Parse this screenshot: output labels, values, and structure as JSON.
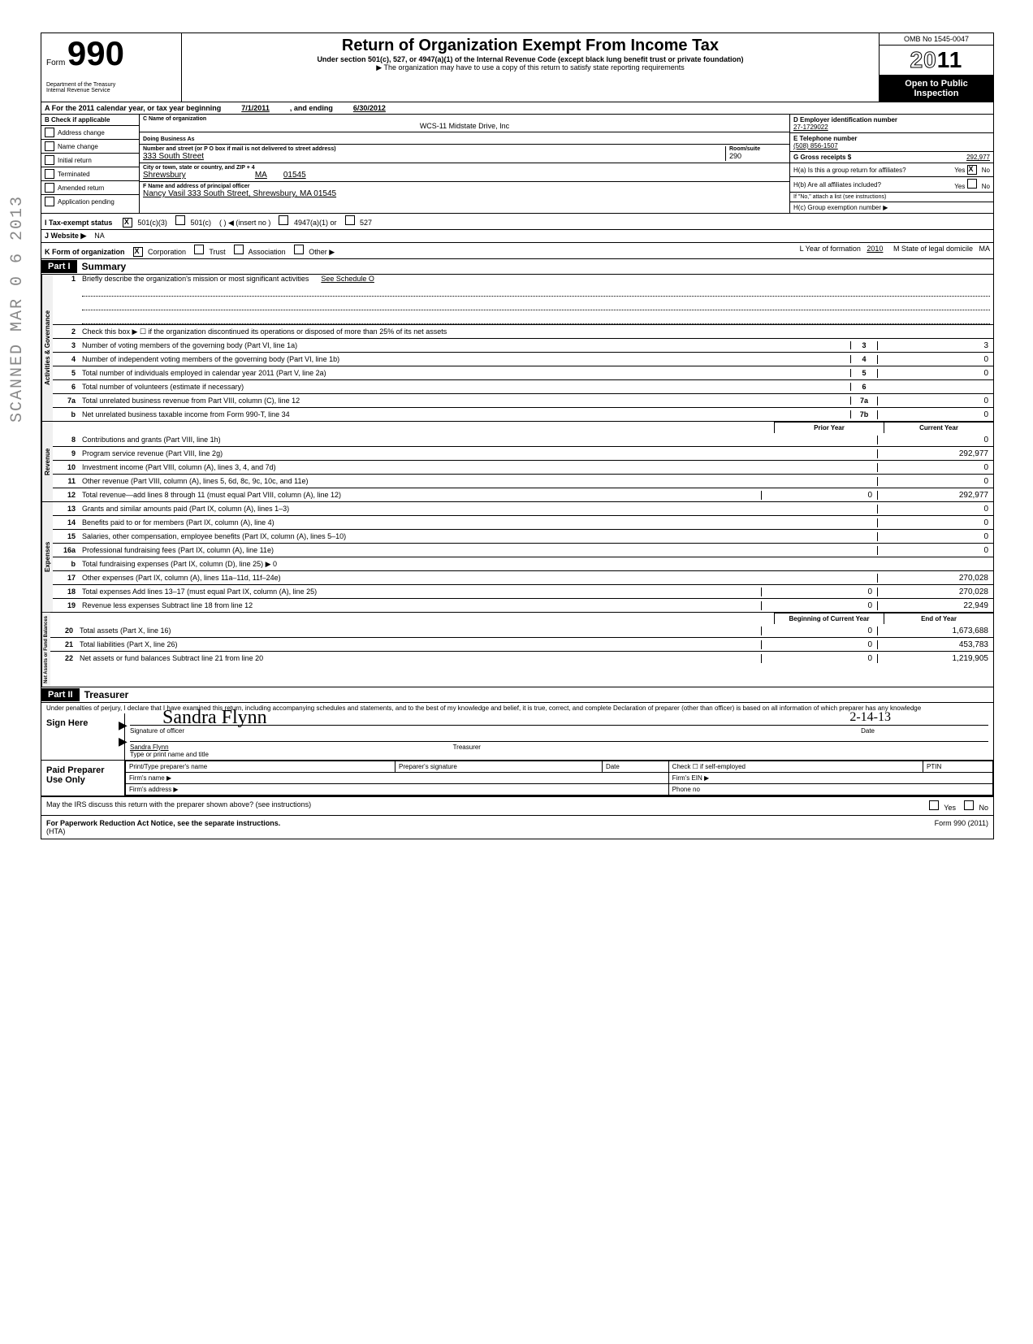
{
  "header": {
    "form_label": "Form",
    "form_number": "990",
    "dept": "Department of the Treasury",
    "irs": "Internal Revenue Service",
    "title": "Return of Organization Exempt From Income Tax",
    "subtitle": "Under section 501(c), 527, or 4947(a)(1) of the Internal Revenue Code (except black lung benefit trust or private foundation)",
    "note": "▶ The organization may have to use a copy of this return to satisfy state reporting requirements",
    "omb": "OMB No 1545-0047",
    "year": "2011",
    "open": "Open to Public",
    "inspect": "Inspection"
  },
  "cal": {
    "prefix": "A   For the 2011 calendar year, or tax year beginning",
    "begin": "7/1/2011",
    "mid": ", and ending",
    "end": "6/30/2012"
  },
  "colB": {
    "hdr": "B  Check if applicable",
    "items": [
      "Address change",
      "Name change",
      "Initial return",
      "Terminated",
      "Amended return",
      "Application pending"
    ]
  },
  "colC": {
    "name_lbl": "C  Name of organization",
    "name": "WCS-11 Midstate Drive, Inc",
    "dba_lbl": "Doing Business As",
    "addr_lbl": "Number and street (or P O  box if mail is not delivered to street address)",
    "addr": "333 South Street",
    "room_lbl": "Room/suite",
    "room": "290",
    "city_lbl": "City or town, state or country, and ZIP + 4",
    "city": "Shrewsbury",
    "state": "MA",
    "zip": "01545",
    "officer_lbl": "F  Name and address of principal officer",
    "officer": "Nancy Vasil 333 South Street, Shrewsbury, MA  01545"
  },
  "colD": {
    "ein_lbl": "D   Employer identification number",
    "ein": "27-1729022",
    "tel_lbl": "E   Telephone number",
    "tel": "(508) 856-1507",
    "gross_lbl": "G   Gross receipts $",
    "gross": "292,977",
    "ha": "H(a) Is this a group return for affiliates?",
    "hb": "H(b) Are all affiliates included?",
    "hb_note": "If \"No,\" attach a list  (see instructions)",
    "hc": "H(c) Group exemption number ▶"
  },
  "lineI": {
    "lbl": "I    Tax-exempt status",
    "opts": [
      "501(c)(3)",
      "501(c)",
      "(              )  ◀ (insert no )",
      "4947(a)(1) or",
      "527"
    ]
  },
  "lineJ": {
    "lbl": "J   Website  ▶",
    "val": "NA"
  },
  "lineK": {
    "lbl": "K  Form of organization",
    "opts": [
      "Corporation",
      "Trust",
      "Association",
      "Other ▶"
    ],
    "year_lbl": "L Year of formation",
    "year": "2010",
    "state_lbl": "M State of legal domicile",
    "state": "MA"
  },
  "part1": {
    "hdr": "Part I",
    "title": "Summary",
    "sections": {
      "gov": "Activities & Governance",
      "rev": "Revenue",
      "exp": "Expenses",
      "net": "Net Assets or Fund Balances"
    },
    "lines": [
      {
        "n": "1",
        "d": "Briefly describe the organization's mission or most significant activities",
        "v": "See Schedule O"
      },
      {
        "n": "2",
        "d": "Check this box  ▶ ☐  if the organization discontinued its operations or disposed of more than 25% of its net assets"
      },
      {
        "n": "3",
        "d": "Number of voting members of the governing body (Part VI, line 1a)",
        "box": "3",
        "amt": "3"
      },
      {
        "n": "4",
        "d": "Number of independent voting members of the governing body (Part VI, line 1b)",
        "box": "4",
        "amt": "0"
      },
      {
        "n": "5",
        "d": "Total number of individuals employed in calendar year 2011 (Part V, line 2a)",
        "box": "5",
        "amt": "0"
      },
      {
        "n": "6",
        "d": "Total number of volunteers (estimate if necessary)",
        "box": "6",
        "amt": ""
      },
      {
        "n": "7a",
        "d": "Total unrelated business revenue from Part VIII, column (C), line 12",
        "box": "7a",
        "amt": "0"
      },
      {
        "n": "b",
        "d": "Net unrelated business taxable income from Form 990-T, line 34",
        "box": "7b",
        "amt": "0"
      }
    ],
    "col_hdr_prior": "Prior Year",
    "col_hdr_curr": "Current Year",
    "rev_lines": [
      {
        "n": "8",
        "d": "Contributions and grants (Part VIII, line 1h)",
        "p": "",
        "c": "0"
      },
      {
        "n": "9",
        "d": "Program service revenue (Part VIII, line 2g)",
        "p": "",
        "c": "292,977"
      },
      {
        "n": "10",
        "d": "Investment income (Part VIII, column (A), lines 3, 4, and 7d)",
        "p": "",
        "c": "0"
      },
      {
        "n": "11",
        "d": "Other revenue (Part VIII, column (A), lines 5, 6d, 8c, 9c, 10c, and 11e)",
        "p": "",
        "c": "0"
      },
      {
        "n": "12",
        "d": "Total revenue—add lines 8 through 11 (must equal Part VIII, column (A), line 12)",
        "p": "0",
        "c": "292,977"
      }
    ],
    "exp_lines": [
      {
        "n": "13",
        "d": "Grants and similar amounts paid (Part IX, column (A), lines 1–3)",
        "p": "",
        "c": "0"
      },
      {
        "n": "14",
        "d": "Benefits paid to or for members (Part IX, column (A), line 4)",
        "p": "",
        "c": "0"
      },
      {
        "n": "15",
        "d": "Salaries, other compensation, employee benefits (Part IX, column (A), lines 5–10)",
        "p": "",
        "c": "0"
      },
      {
        "n": "16a",
        "d": "Professional fundraising fees (Part IX, column (A), line 11e)",
        "p": "",
        "c": "0"
      },
      {
        "n": "b",
        "d": "Total fundraising expenses (Part IX, column (D), line 25) ▶                                    0",
        "p": "",
        "c": ""
      },
      {
        "n": "17",
        "d": "Other expenses (Part IX, column (A), lines 11a–11d, 11f–24e)",
        "p": "",
        "c": "270,028"
      },
      {
        "n": "18",
        "d": "Total expenses  Add lines 13–17 (must equal Part IX, column (A), line 25)",
        "p": "0",
        "c": "270,028"
      },
      {
        "n": "19",
        "d": "Revenue less expenses  Subtract line 18 from line 12",
        "p": "0",
        "c": "22,949"
      }
    ],
    "col_hdr_begin": "Beginning of Current Year",
    "col_hdr_end": "End of Year",
    "net_lines": [
      {
        "n": "20",
        "d": "Total assets (Part X, line 16)",
        "p": "0",
        "c": "1,673,688"
      },
      {
        "n": "21",
        "d": "Total liabilities (Part X, line 26)",
        "p": "0",
        "c": "453,783"
      },
      {
        "n": "22",
        "d": "Net assets or fund balances  Subtract line 21 from line 20",
        "p": "0",
        "c": "1,219,905"
      }
    ]
  },
  "part2": {
    "hdr": "Part II",
    "title": "Treasurer",
    "perjury": "Under penalties of perjury, I declare that I have examined this return, including accompanying schedules and statements, and to the best of my knowledge and belief, it is true, correct, and complete  Declaration of preparer (other than officer) is based on all information of which preparer has any knowledge",
    "sign": "Sign Here",
    "sig_lbl": "Signature of officer",
    "date_lbl": "Date",
    "date_val": "2-14-13",
    "name": "Sandra Flynn",
    "type_lbl": "Type or print name and title",
    "paid": "Paid Preparer Use Only",
    "prep_name_lbl": "Print/Type preparer's name",
    "prep_sig_lbl": "Preparer's signature",
    "prep_date_lbl": "Date",
    "check_lbl": "Check ☐ if self-employed",
    "ptin_lbl": "PTIN",
    "firm_name": "Firm's name    ▶",
    "firm_ein": "Firm's EIN ▶",
    "firm_addr": "Firm's address ▶",
    "phone": "Phone no",
    "discuss": "May the IRS discuss this return with the preparer shown above? (see instructions)",
    "yes": "Yes",
    "no": "No"
  },
  "footer": {
    "pra": "For Paperwork Reduction Act Notice, see the separate instructions.",
    "hta": "(HTA)",
    "form": "Form 990 (2011)"
  },
  "stamp": "SCANNED  MAR 0 6 2013"
}
